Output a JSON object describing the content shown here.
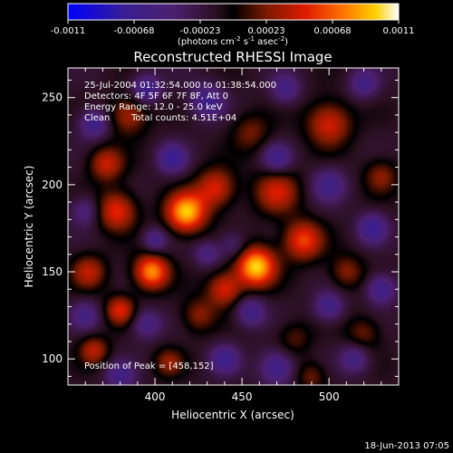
{
  "chart_data": {
    "type": "heatmap",
    "title": "Reconstructed RHESSI Image",
    "xlabel": "Heliocentric X (arcsec)",
    "ylabel": "Heliocentric Y (arcsec)",
    "xlim": [
      350,
      540
    ],
    "ylim": [
      85,
      267
    ],
    "x_ticks": [
      400,
      450,
      500
    ],
    "y_ticks": [
      100,
      150,
      200,
      250
    ],
    "colorbar": {
      "range": [
        -0.0011,
        0.0011
      ],
      "ticks": [
        "-0.0011",
        "-0.00068",
        "-0.00023",
        "0.00023",
        "0.00068",
        "0.0011"
      ],
      "unit_label": "(photons cm",
      "unit_label_parts": [
        "(photons cm",
        "-2",
        " s",
        "-1",
        " asec",
        "-2",
        ")"
      ],
      "colormap": [
        "#0000ff",
        "#3a1f8f",
        "#4b1f6e",
        "#2a0f1f",
        "#000000",
        "#7a1a00",
        "#e01b00",
        "#ff7a00",
        "#ffd000",
        "#ffffff"
      ]
    },
    "annotations": [
      "25-Jul-2004 01:32:54.000 to 01:38:54.000",
      "Detectors: 4F 5F 6F 7F 8F, Att 0",
      "Energy Range: 12.0 - 25.0 keV",
      "Clean",
      "Total counts: 4.51E+04"
    ],
    "peak_label": "Position of Peak = [458,152]",
    "peak": [
      458,
      152
    ],
    "peak_value": 0.0011,
    "blobs": [
      {
        "x": 458,
        "y": 153,
        "v": 1.0,
        "s": 8
      },
      {
        "x": 418,
        "y": 184,
        "v": 0.95,
        "s": 8
      },
      {
        "x": 398,
        "y": 150,
        "v": 0.85,
        "s": 7
      },
      {
        "x": 485,
        "y": 168,
        "v": 0.65,
        "s": 8
      },
      {
        "x": 440,
        "y": 140,
        "v": 0.55,
        "s": 7
      },
      {
        "x": 435,
        "y": 198,
        "v": 0.55,
        "s": 8
      },
      {
        "x": 470,
        "y": 196,
        "v": 0.5,
        "s": 9
      },
      {
        "x": 378,
        "y": 185,
        "v": 0.6,
        "s": 8
      },
      {
        "x": 372,
        "y": 212,
        "v": 0.5,
        "s": 7
      },
      {
        "x": 362,
        "y": 150,
        "v": 0.45,
        "s": 7
      },
      {
        "x": 380,
        "y": 128,
        "v": 0.55,
        "s": 6
      },
      {
        "x": 365,
        "y": 105,
        "v": 0.45,
        "s": 6
      },
      {
        "x": 425,
        "y": 125,
        "v": 0.35,
        "s": 7
      },
      {
        "x": 500,
        "y": 235,
        "v": 0.55,
        "s": 9
      },
      {
        "x": 510,
        "y": 150,
        "v": 0.35,
        "s": 7
      },
      {
        "x": 520,
        "y": 115,
        "v": 0.3,
        "s": 7
      },
      {
        "x": 480,
        "y": 112,
        "v": 0.25,
        "s": 7
      },
      {
        "x": 385,
        "y": 240,
        "v": 0.45,
        "s": 8
      },
      {
        "x": 455,
        "y": 230,
        "v": 0.3,
        "s": 8
      },
      {
        "x": 530,
        "y": 205,
        "v": 0.35,
        "s": 7
      },
      {
        "x": 490,
        "y": 90,
        "v": 0.3,
        "s": 6
      },
      {
        "x": 408,
        "y": 98,
        "v": 0.35,
        "s": 6
      },
      {
        "x": 445,
        "y": 165,
        "v": -0.3,
        "s": 6
      },
      {
        "x": 430,
        "y": 160,
        "v": -0.35,
        "s": 5
      },
      {
        "x": 455,
        "y": 127,
        "v": -0.45,
        "s": 6
      },
      {
        "x": 400,
        "y": 168,
        "v": -0.4,
        "s": 5
      },
      {
        "x": 410,
        "y": 215,
        "v": -0.5,
        "s": 6
      },
      {
        "x": 470,
        "y": 215,
        "v": -0.45,
        "s": 6
      },
      {
        "x": 500,
        "y": 200,
        "v": -0.4,
        "s": 7
      },
      {
        "x": 365,
        "y": 235,
        "v": -0.5,
        "s": 6
      },
      {
        "x": 395,
        "y": 255,
        "v": -0.5,
        "s": 6
      },
      {
        "x": 430,
        "y": 248,
        "v": -0.45,
        "s": 7
      },
      {
        "x": 475,
        "y": 255,
        "v": -0.4,
        "s": 6
      },
      {
        "x": 520,
        "y": 258,
        "v": -0.4,
        "s": 6
      },
      {
        "x": 525,
        "y": 175,
        "v": -0.5,
        "s": 6
      },
      {
        "x": 500,
        "y": 130,
        "v": -0.45,
        "s": 6
      },
      {
        "x": 530,
        "y": 140,
        "v": -0.5,
        "s": 6
      },
      {
        "x": 470,
        "y": 95,
        "v": -0.5,
        "s": 7
      },
      {
        "x": 440,
        "y": 100,
        "v": -0.45,
        "s": 6
      },
      {
        "x": 395,
        "y": 120,
        "v": -0.4,
        "s": 6
      },
      {
        "x": 360,
        "y": 125,
        "v": -0.35,
        "s": 6
      },
      {
        "x": 360,
        "y": 185,
        "v": -0.35,
        "s": 6
      },
      {
        "x": 515,
        "y": 100,
        "v": -0.4,
        "s": 6
      },
      {
        "x": 380,
        "y": 90,
        "v": -0.4,
        "s": 6
      }
    ]
  },
  "footer": {
    "timestamp": "18-Jun-2013 07:05"
  }
}
